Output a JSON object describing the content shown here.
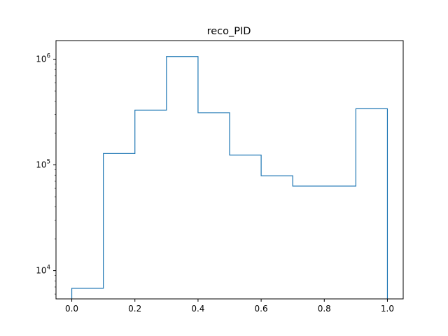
{
  "chart_data": {
    "type": "histogram",
    "title": "reco_PID",
    "xlabel": "",
    "ylabel": "",
    "yscale": "log",
    "xlim": [
      -0.05,
      1.05
    ],
    "ylim": [
      5400,
      1500000
    ],
    "grid": false,
    "legend": "none",
    "bin_edges": [
      0.0,
      0.1,
      0.2,
      0.3,
      0.4,
      0.5,
      0.6,
      0.7,
      0.8,
      0.9,
      1.0
    ],
    "counts": [
      6800,
      128000,
      330000,
      1060000,
      312000,
      124000,
      79000,
      63000,
      63000,
      340000
    ],
    "series_color": "#1f77b4",
    "x_ticks": [
      {
        "value": 0.0,
        "label": "0.0"
      },
      {
        "value": 0.2,
        "label": "0.2"
      },
      {
        "value": 0.4,
        "label": "0.4"
      },
      {
        "value": 0.6,
        "label": "0.6"
      },
      {
        "value": 0.8,
        "label": "0.8"
      },
      {
        "value": 1.0,
        "label": "1.0"
      }
    ],
    "y_ticks": [
      {
        "value": 10000,
        "base": "10",
        "exp": "4"
      },
      {
        "value": 100000,
        "base": "10",
        "exp": "5"
      },
      {
        "value": 1000000,
        "base": "10",
        "exp": "6"
      }
    ]
  }
}
